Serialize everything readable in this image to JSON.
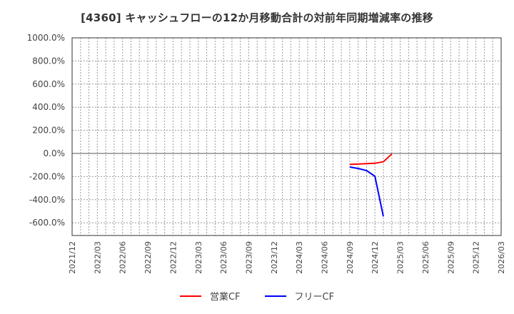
{
  "title": "[4360]  キャッシュフローの12か月移動合計の対前年同期増減率の推移",
  "legend": [
    {
      "label": "営業CF",
      "color": "#ff0000"
    },
    {
      "label": "フリーCF",
      "color": "#0000ff"
    }
  ],
  "chart_data": {
    "type": "line",
    "title": "[4360]  キャッシュフローの12か月移動合計の対前年同期増減率の推移",
    "xlabel": "",
    "ylabel": "",
    "ylim": [
      -710,
      1000
    ],
    "yticks": [
      "1000.0%",
      "800.0%",
      "600.0%",
      "400.0%",
      "200.0%",
      "0.0%",
      "-200.0%",
      "-400.0%",
      "-600.0%"
    ],
    "xticks": [
      "2021/12",
      "2022/03",
      "2022/06",
      "2022/09",
      "2022/12",
      "2023/03",
      "2023/06",
      "2023/09",
      "2023/12",
      "2024/03",
      "2024/06",
      "2024/09",
      "2024/12",
      "2025/03",
      "2025/06",
      "2025/09",
      "2025/12",
      "2026/03"
    ],
    "grid": true,
    "legend_position": "bottom",
    "x": [
      "2024/09",
      "2024/10",
      "2024/11",
      "2024/12",
      "2025/01",
      "2025/02"
    ],
    "series": [
      {
        "name": "営業CF",
        "color": "#ff0000",
        "values": [
          -95,
          -92,
          -88,
          -85,
          -72,
          -5
        ]
      },
      {
        "name": "フリーCF",
        "color": "#0000ff",
        "values": [
          -117,
          -130,
          -148,
          -198,
          -545,
          null
        ]
      }
    ]
  }
}
